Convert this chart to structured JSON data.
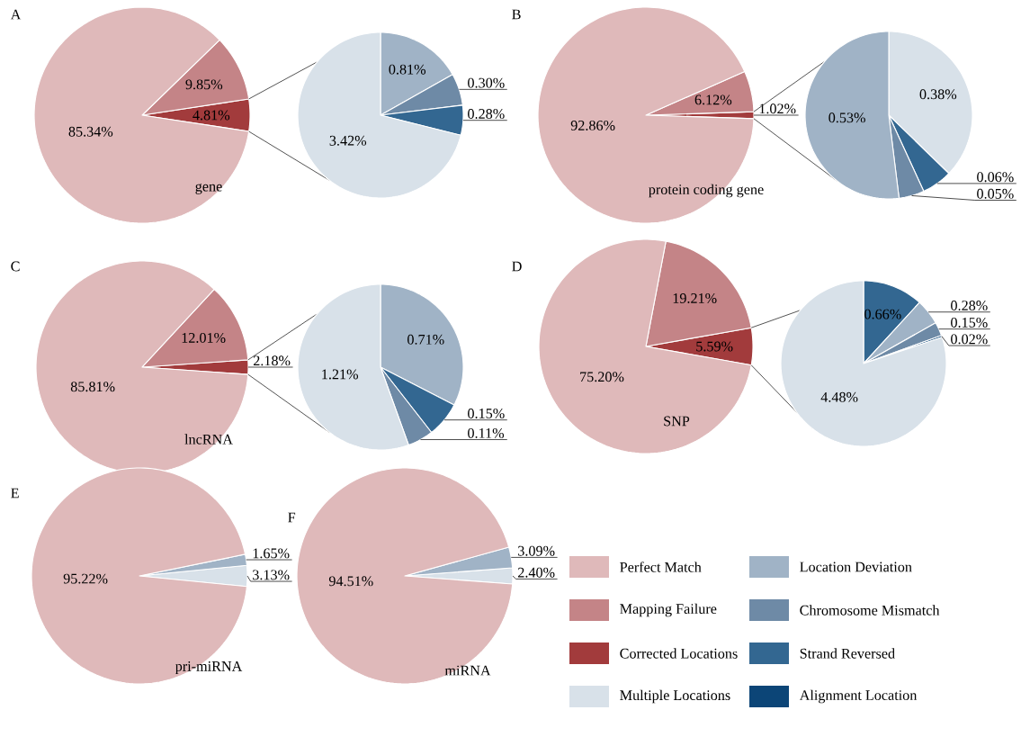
{
  "chart_data": [
    {
      "type": "pie",
      "title": "A",
      "subtitle": "gene",
      "categories": [
        "Perfect Match",
        "Mapping Failure",
        "Corrected Locations"
      ],
      "values": [
        85.34,
        9.85,
        4.81
      ],
      "value_labels": [
        "85.34%",
        "9.85%",
        "4.81%"
      ],
      "colors": [
        "#dfb9ba",
        "#c48487",
        "#a23b3c"
      ],
      "legend": "bottom right"
    },
    {
      "type": "pie",
      "categories": [
        "Multiple Locations",
        "Location Deviation",
        "Chromosome Mismatch",
        "Strand Reversed"
      ],
      "values": [
        3.42,
        0.81,
        0.3,
        0.28
      ],
      "value_labels": [
        "3.42%",
        "0.81%",
        "0.30%",
        "0.28%"
      ],
      "colors": [
        "#d8e1e9",
        "#a0b3c6",
        "#6e8aa6",
        "#336791"
      ],
      "legend": "bottom right"
    },
    {
      "type": "pie",
      "title": "B",
      "subtitle": "protein coding gene",
      "categories": [
        null,
        null,
        null
      ],
      "values": [
        92.86,
        6.12,
        1.02
      ],
      "value_labels": [
        "92.86%",
        "6.12%",
        "1.02%"
      ],
      "colors": [
        "#dfb9ba",
        "#c48487",
        "#a23b3c"
      ]
    },
    {
      "type": "pie",
      "categories": [
        null,
        null,
        null,
        null
      ],
      "values": [
        0.53,
        0.38,
        0.06,
        0.05
      ],
      "value_labels": [
        "0.53%",
        "0.38%",
        "0.06%",
        "0.05%"
      ],
      "colors": [
        "#a0b3c6",
        "#d8e1e9",
        "#336791",
        "#6e8aa6"
      ]
    },
    {
      "type": "pie",
      "title": "C",
      "subtitle": "lncRNA",
      "categories": [
        null,
        null,
        null
      ],
      "values": [
        85.81,
        12.01,
        2.18
      ],
      "value_labels": [
        "85.81%",
        "12.01%",
        "2.18%"
      ],
      "colors": [
        "#dfb9ba",
        "#c48487",
        "#a23b3c"
      ]
    },
    {
      "type": "pie",
      "categories": [
        null,
        null,
        null,
        null
      ],
      "values": [
        1.21,
        0.71,
        0.15,
        0.11
      ],
      "value_labels": [
        "1.21%",
        "0.71%",
        "0.15%",
        "0.11%"
      ],
      "colors": [
        "#d8e1e9",
        "#a0b3c6",
        "#336791",
        "#6e8aa6"
      ]
    },
    {
      "type": "pie",
      "title": "D",
      "subtitle": "SNP",
      "categories": [
        null,
        null,
        null
      ],
      "values": [
        75.2,
        19.21,
        5.59
      ],
      "value_labels": [
        "75.20%",
        "19.21%",
        "5.59%"
      ],
      "colors": [
        "#dfb9ba",
        "#c48487",
        "#a23b3c"
      ]
    },
    {
      "type": "pie",
      "categories": [
        null,
        null,
        null,
        null,
        "Alignment Location"
      ],
      "values": [
        4.48,
        0.66,
        0.28,
        0.15,
        0.02
      ],
      "value_labels": [
        "4.48%",
        "0.66%",
        "0.28%",
        "0.15%",
        "0.02%"
      ],
      "colors": [
        "#d8e1e9",
        "#336791",
        "#a0b3c6",
        "#6e8aa6",
        "#0c4577"
      ],
      "legend": "bottom left"
    },
    {
      "type": "pie",
      "title": "E",
      "subtitle": "pri-miRNA",
      "categories": [
        null,
        null,
        null
      ],
      "values": [
        95.22,
        1.65,
        3.13
      ],
      "value_labels": [
        "95.22%",
        "1.65%",
        "3.13%"
      ],
      "colors": [
        "#dfb9ba",
        "#a0b3c6",
        "#d8e1e9"
      ]
    },
    {
      "type": "pie",
      "title": "F",
      "subtitle": "miRNA",
      "categories": [
        null,
        null,
        null
      ],
      "values": [
        94.51,
        3.09,
        2.4
      ],
      "value_labels": [
        "94.51%",
        "3.09%",
        "2.40%"
      ],
      "colors": [
        "#dfb9ba",
        "#a0b3c6",
        "#d8e1e9"
      ]
    }
  ]
}
